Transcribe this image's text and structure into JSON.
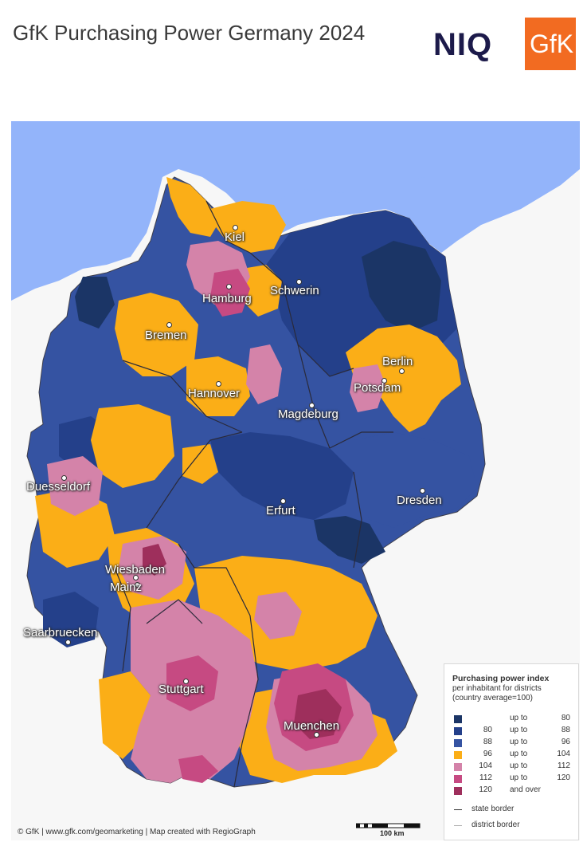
{
  "header": {
    "title": "GfK Purchasing Power Germany 2024",
    "niq_logo": "NIQ",
    "gfk_logo": "GfK"
  },
  "colors": {
    "sea": "#93b4fa",
    "outside": "#f7f7f7",
    "c1": "#1b3566",
    "c2": "#24408a",
    "c3": "#3553a2",
    "c4": "#fbae17",
    "c5": "#d483a9",
    "c6": "#c64a82",
    "c7": "#9e2f5c"
  },
  "cities": [
    {
      "name": "Kiel"
    },
    {
      "name": "Hamburg"
    },
    {
      "name": "Schwerin"
    },
    {
      "name": "Bremen"
    },
    {
      "name": "Berlin"
    },
    {
      "name": "Potsdam"
    },
    {
      "name": "Hannover"
    },
    {
      "name": "Magdeburg"
    },
    {
      "name": "Duesseldorf"
    },
    {
      "name": "Dresden"
    },
    {
      "name": "Erfurt"
    },
    {
      "name": "Wiesbaden"
    },
    {
      "name": "Mainz"
    },
    {
      "name": "Saarbruecken"
    },
    {
      "name": "Stuttgart"
    },
    {
      "name": "Muenchen"
    }
  ],
  "legend": {
    "title": "Purchasing power index",
    "subtitle_1": "per inhabitant for districts",
    "subtitle_2": "(country average=100)",
    "rows": [
      {
        "from": "",
        "mid": "up to",
        "to": "80",
        "color": "#1b3566"
      },
      {
        "from": "80",
        "mid": "up to",
        "to": "88",
        "color": "#24408a"
      },
      {
        "from": "88",
        "mid": "up to",
        "to": "96",
        "color": "#3553a2"
      },
      {
        "from": "96",
        "mid": "up to",
        "to": "104",
        "color": "#fbae17"
      },
      {
        "from": "104",
        "mid": "up to",
        "to": "112",
        "color": "#d483a9"
      },
      {
        "from": "112",
        "mid": "up to",
        "to": "120",
        "color": "#c64a82"
      },
      {
        "from": "120",
        "mid": "and over",
        "to": "",
        "color": "#9e2f5c"
      }
    ],
    "state_border": "state border",
    "district_border": "district border"
  },
  "footer": {
    "credit": "© GfK | www.gfk.com/geomarketing | Map created with RegioGraph",
    "scale": "100 km"
  }
}
